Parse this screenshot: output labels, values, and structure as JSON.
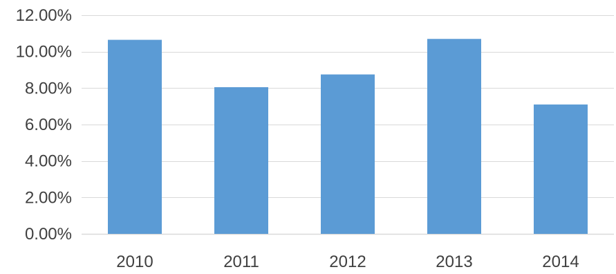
{
  "chart_data": {
    "type": "bar",
    "title": "",
    "xlabel": "",
    "ylabel": "",
    "categories": [
      "2010",
      "2011",
      "2012",
      "2013",
      "2014"
    ],
    "values": [
      10.65,
      8.05,
      8.75,
      10.7,
      7.1
    ],
    "value_format": "percent",
    "ylim": [
      0,
      12
    ],
    "yticks": [
      0,
      2,
      4,
      6,
      8,
      10,
      12
    ],
    "ytick_labels": [
      "0.00%",
      "2.00%",
      "4.00%",
      "6.00%",
      "8.00%",
      "10.00%",
      "12.00%"
    ],
    "grid": true,
    "legend": "none",
    "colors": {
      "bar": "#5b9bd5",
      "grid": "#d9d9d9",
      "tick_text": "#404040"
    }
  }
}
